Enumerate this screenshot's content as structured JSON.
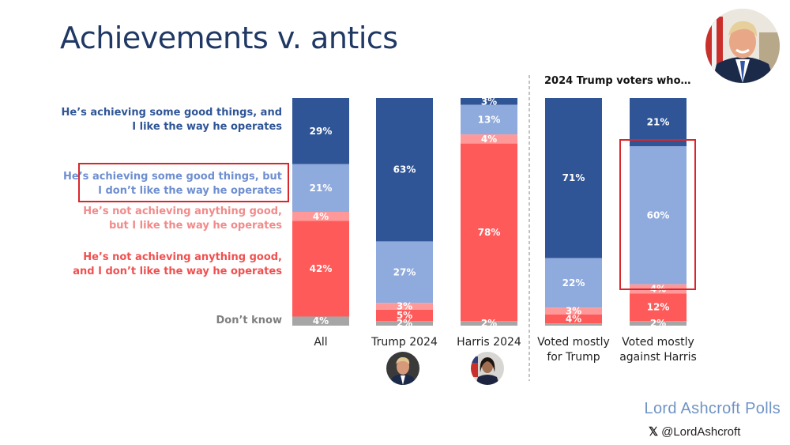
{
  "title": "Achievements v. antics",
  "subgroup_title": "2024 Trump voters who…",
  "brand": "Lord Ashcroft Polls",
  "social": {
    "icon": "x-logo-icon",
    "x_glyph": "𝕏",
    "handle": "@LordAshcroft"
  },
  "colors": {
    "achieve_like": "#2f5597",
    "achieve_dislike": "#8faadc",
    "not_achieve_like": "#ff9999",
    "not_achieve_dislike": "#ff5a5a",
    "dont_know": "#a6a6a6",
    "title": "#1f3864",
    "highlight": "#d9262b"
  },
  "chart_data": {
    "type": "bar",
    "stacked": true,
    "orientation": "vertical",
    "title": "Achievements v. antics",
    "xlabel": "",
    "ylabel": "",
    "ylim": [
      0,
      100
    ],
    "unit": "%",
    "categories": [
      "All",
      "Trump 2024",
      "Harris 2024",
      "Voted mostly for Trump",
      "Voted mostly against Harris"
    ],
    "category_groups": [
      {
        "name": "",
        "categories": [
          "All",
          "Trump 2024",
          "Harris 2024"
        ]
      },
      {
        "name": "2024 Trump voters who…",
        "categories": [
          "Voted mostly for Trump",
          "Voted mostly against Harris"
        ]
      }
    ],
    "series": [
      {
        "name": "He's achieving some good things, and I like the way he operates",
        "key": "achieve_like",
        "values": [
          29,
          63,
          3,
          71,
          21
        ]
      },
      {
        "name": "He's achieving some good things, but I don't like the way he operates",
        "key": "achieve_dislike",
        "values": [
          21,
          27,
          13,
          22,
          60
        ]
      },
      {
        "name": "He's not achieving anything good, but I like the way he operates",
        "key": "not_achieve_like",
        "values": [
          4,
          3,
          4,
          3,
          4
        ]
      },
      {
        "name": "He's not achieving anything good, and I don't like the way he operates",
        "key": "not_achieve_dislike",
        "values": [
          42,
          5,
          78,
          4,
          12
        ]
      },
      {
        "name": "Don't know",
        "key": "dont_know",
        "values": [
          4,
          2,
          2,
          1,
          2
        ]
      }
    ],
    "data_labels": [
      [
        "29%",
        "63%",
        "3%",
        "71%",
        "21%"
      ],
      [
        "21%",
        "27%",
        "13%",
        "22%",
        "60%"
      ],
      [
        "4%",
        "3%",
        "4%",
        "3%",
        "4%"
      ],
      [
        "42%",
        "5%",
        "78%",
        "4%",
        "12%"
      ],
      [
        "4%",
        "2%",
        "2%",
        "",
        "2%"
      ]
    ],
    "legend": {
      "placement": "left",
      "entries": [
        {
          "lines": [
            "He’s achieving some good things, and",
            "I like the way he operates"
          ]
        },
        {
          "lines": [
            "He’s achieving some good things, but",
            "I don’t like the way he operates"
          ],
          "highlighted": true
        },
        {
          "lines": [
            "He’s not achieving anything good,",
            "but I like the way he operates"
          ]
        },
        {
          "lines": [
            "He’s not achieving anything good,",
            "and I don’t like the way he operates"
          ]
        },
        {
          "lines": [
            "Don’t know"
          ]
        }
      ]
    },
    "category_labels": [
      {
        "lines": [
          "All"
        ]
      },
      {
        "lines": [
          "Trump 2024"
        ],
        "avatar": "trump-avatar"
      },
      {
        "lines": [
          "Harris 2024"
        ],
        "avatar": "harris-avatar"
      },
      {
        "lines": [
          "Voted mostly",
          "for Trump"
        ]
      },
      {
        "lines": [
          "Voted mostly",
          "against Harris"
        ]
      }
    ],
    "highlights": [
      {
        "target": "legend",
        "entry": 1
      },
      {
        "target": "bar-segment",
        "category": "Voted mostly against Harris",
        "series": "achieve_dislike"
      }
    ]
  }
}
